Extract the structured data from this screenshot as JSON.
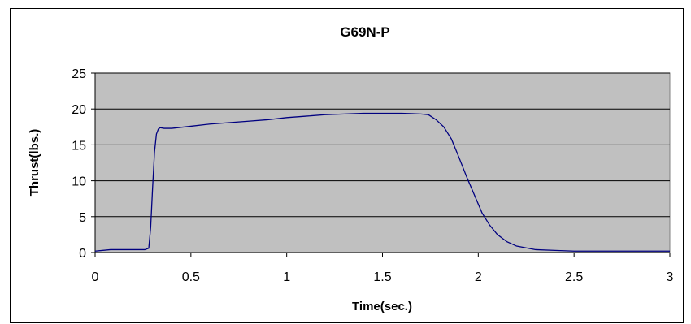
{
  "chart_data": {
    "type": "line",
    "title": "G69N-P",
    "xlabel": "Time(sec.)",
    "ylabel": "Thrust(lbs.)",
    "xlim": [
      0,
      3
    ],
    "ylim": [
      0,
      25
    ],
    "xticks": [
      0,
      0.5,
      1,
      1.5,
      2,
      2.5,
      3
    ],
    "xtick_labels": [
      "0",
      "0.5",
      "1",
      "1.5",
      "2",
      "2.5",
      "3"
    ],
    "yticks": [
      0,
      5,
      10,
      15,
      20,
      25
    ],
    "ytick_labels": [
      "0",
      "5",
      "10",
      "15",
      "20",
      "25"
    ],
    "grid": "horizontal",
    "legend": "none",
    "plot_background": "#c0c0c0",
    "line_color": "#000080",
    "series": [
      {
        "x": [
          0,
          0.08,
          0.26,
          0.28,
          0.29,
          0.3,
          0.31,
          0.32,
          0.33,
          0.34,
          0.36,
          0.4,
          0.5,
          0.6,
          0.7,
          0.8,
          0.9,
          1.0,
          1.1,
          1.2,
          1.3,
          1.4,
          1.5,
          1.6,
          1.7,
          1.74,
          1.78,
          1.82,
          1.86,
          1.9,
          1.94,
          1.98,
          2.02,
          2.06,
          2.1,
          2.15,
          2.2,
          2.3,
          2.4,
          2.5,
          2.7,
          2.9,
          3.0
        ],
        "y": [
          0.2,
          0.4,
          0.4,
          0.6,
          3.5,
          9.0,
          14.0,
          16.5,
          17.2,
          17.4,
          17.3,
          17.3,
          17.6,
          17.9,
          18.1,
          18.3,
          18.5,
          18.8,
          19.0,
          19.2,
          19.3,
          19.4,
          19.4,
          19.4,
          19.3,
          19.2,
          18.5,
          17.5,
          15.8,
          13.2,
          10.5,
          8.0,
          5.5,
          3.8,
          2.5,
          1.5,
          0.9,
          0.4,
          0.3,
          0.2,
          0.2,
          0.2,
          0.2
        ]
      }
    ]
  }
}
